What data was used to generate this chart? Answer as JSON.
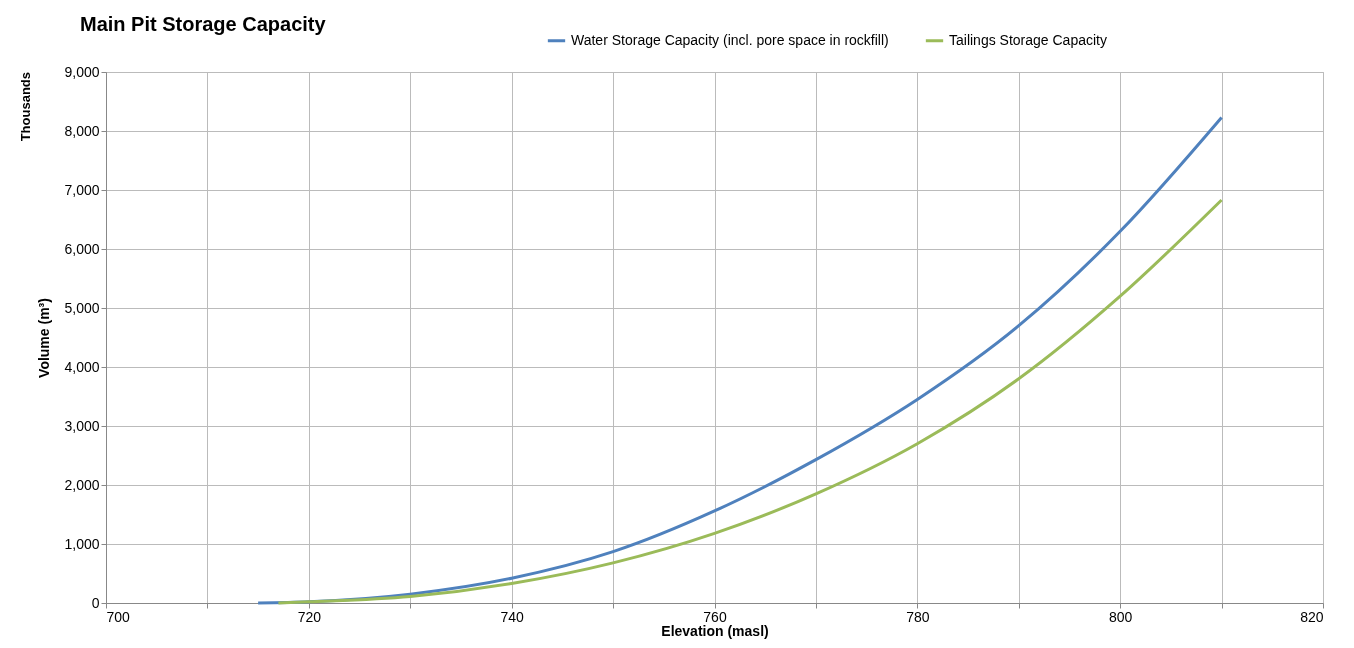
{
  "chart_data": {
    "type": "line",
    "title": "Main Pit Storage Capacity",
    "xlabel": "Elevation (masl)",
    "ylabel": "Volume (m³)",
    "annotations": [
      "Thousands"
    ],
    "series": [
      {
        "name": "Water Storage Capacity (incl. pore space in rockfill)",
        "color": "#4f81bd",
        "x": [
          715,
          720,
          730,
          740,
          750,
          760,
          770,
          780,
          790,
          800,
          810
        ],
        "values": [
          0,
          20,
          150,
          420,
          870,
          1560,
          2430,
          3450,
          4700,
          6300,
          8230
        ]
      },
      {
        "name": "Tailings Storage Capacity",
        "color": "#9bbb59",
        "x": [
          717,
          720,
          730,
          740,
          750,
          760,
          770,
          780,
          790,
          800,
          810
        ],
        "values": [
          0,
          20,
          110,
          330,
          680,
          1180,
          1850,
          2700,
          3800,
          5200,
          6830
        ]
      }
    ],
    "xlim": [
      700,
      820
    ],
    "xticks": [
      700,
      {
        "value": 710,
        "label": null
      },
      720,
      {
        "value": 730,
        "label": null
      },
      740,
      {
        "value": 750,
        "label": null
      },
      760,
      {
        "value": 770,
        "label": null
      },
      780,
      {
        "value": 790,
        "label": null
      },
      800,
      {
        "value": 810,
        "label": null
      },
      820
    ],
    "ylim": [
      0,
      9000
    ],
    "yticks": [
      0,
      {
        "value": 1000,
        "label": "1,000"
      },
      {
        "value": 2000,
        "label": "2,000"
      },
      {
        "value": 3000,
        "label": "3,000"
      },
      {
        "value": 4000,
        "label": "4,000"
      },
      {
        "value": 5000,
        "label": "5,000"
      },
      {
        "value": 6000,
        "label": "6,000"
      },
      {
        "value": 7000,
        "label": "7,000"
      },
      {
        "value": 8000,
        "label": "8,000"
      },
      {
        "value": 9000,
        "label": "9,000"
      }
    ],
    "grid": true,
    "legend": "top right",
    "line_style": "solid",
    "marker": "none"
  }
}
